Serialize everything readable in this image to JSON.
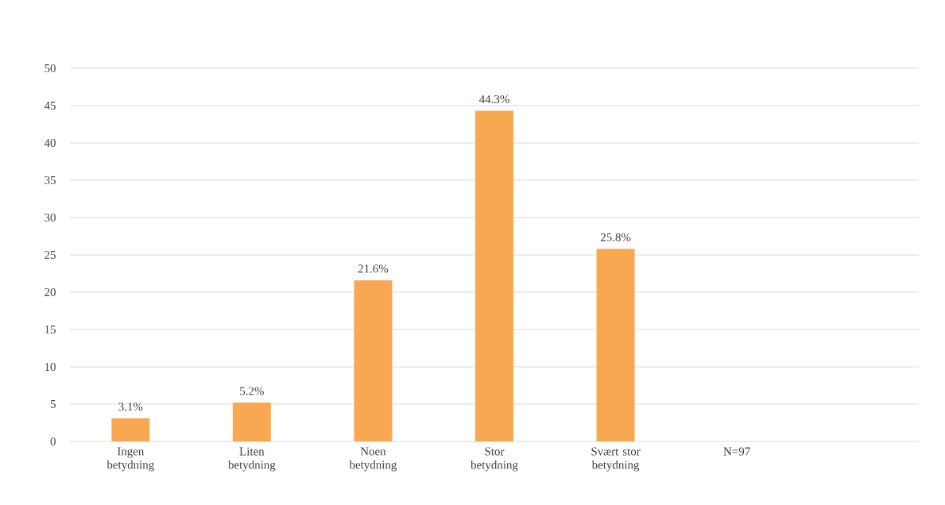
{
  "chart_data": {
    "type": "bar",
    "categories": [
      "Ingen betydning",
      "Liten betydning",
      "Noen betydning",
      "Stor betydning",
      "Svært stor betydning",
      "N=97",
      null
    ],
    "values": [
      3.1,
      5.2,
      21.6,
      44.3,
      25.8,
      null,
      null
    ],
    "value_labels": [
      "3.1%",
      "5.2%",
      "21.6%",
      "44.3%",
      "25.8%",
      null,
      null
    ],
    "color": "#f9a852",
    "ylim": [
      0,
      50
    ],
    "yticks": [
      0,
      5,
      10,
      15,
      20,
      25,
      30,
      35,
      40,
      45,
      50
    ],
    "grid": "y"
  }
}
